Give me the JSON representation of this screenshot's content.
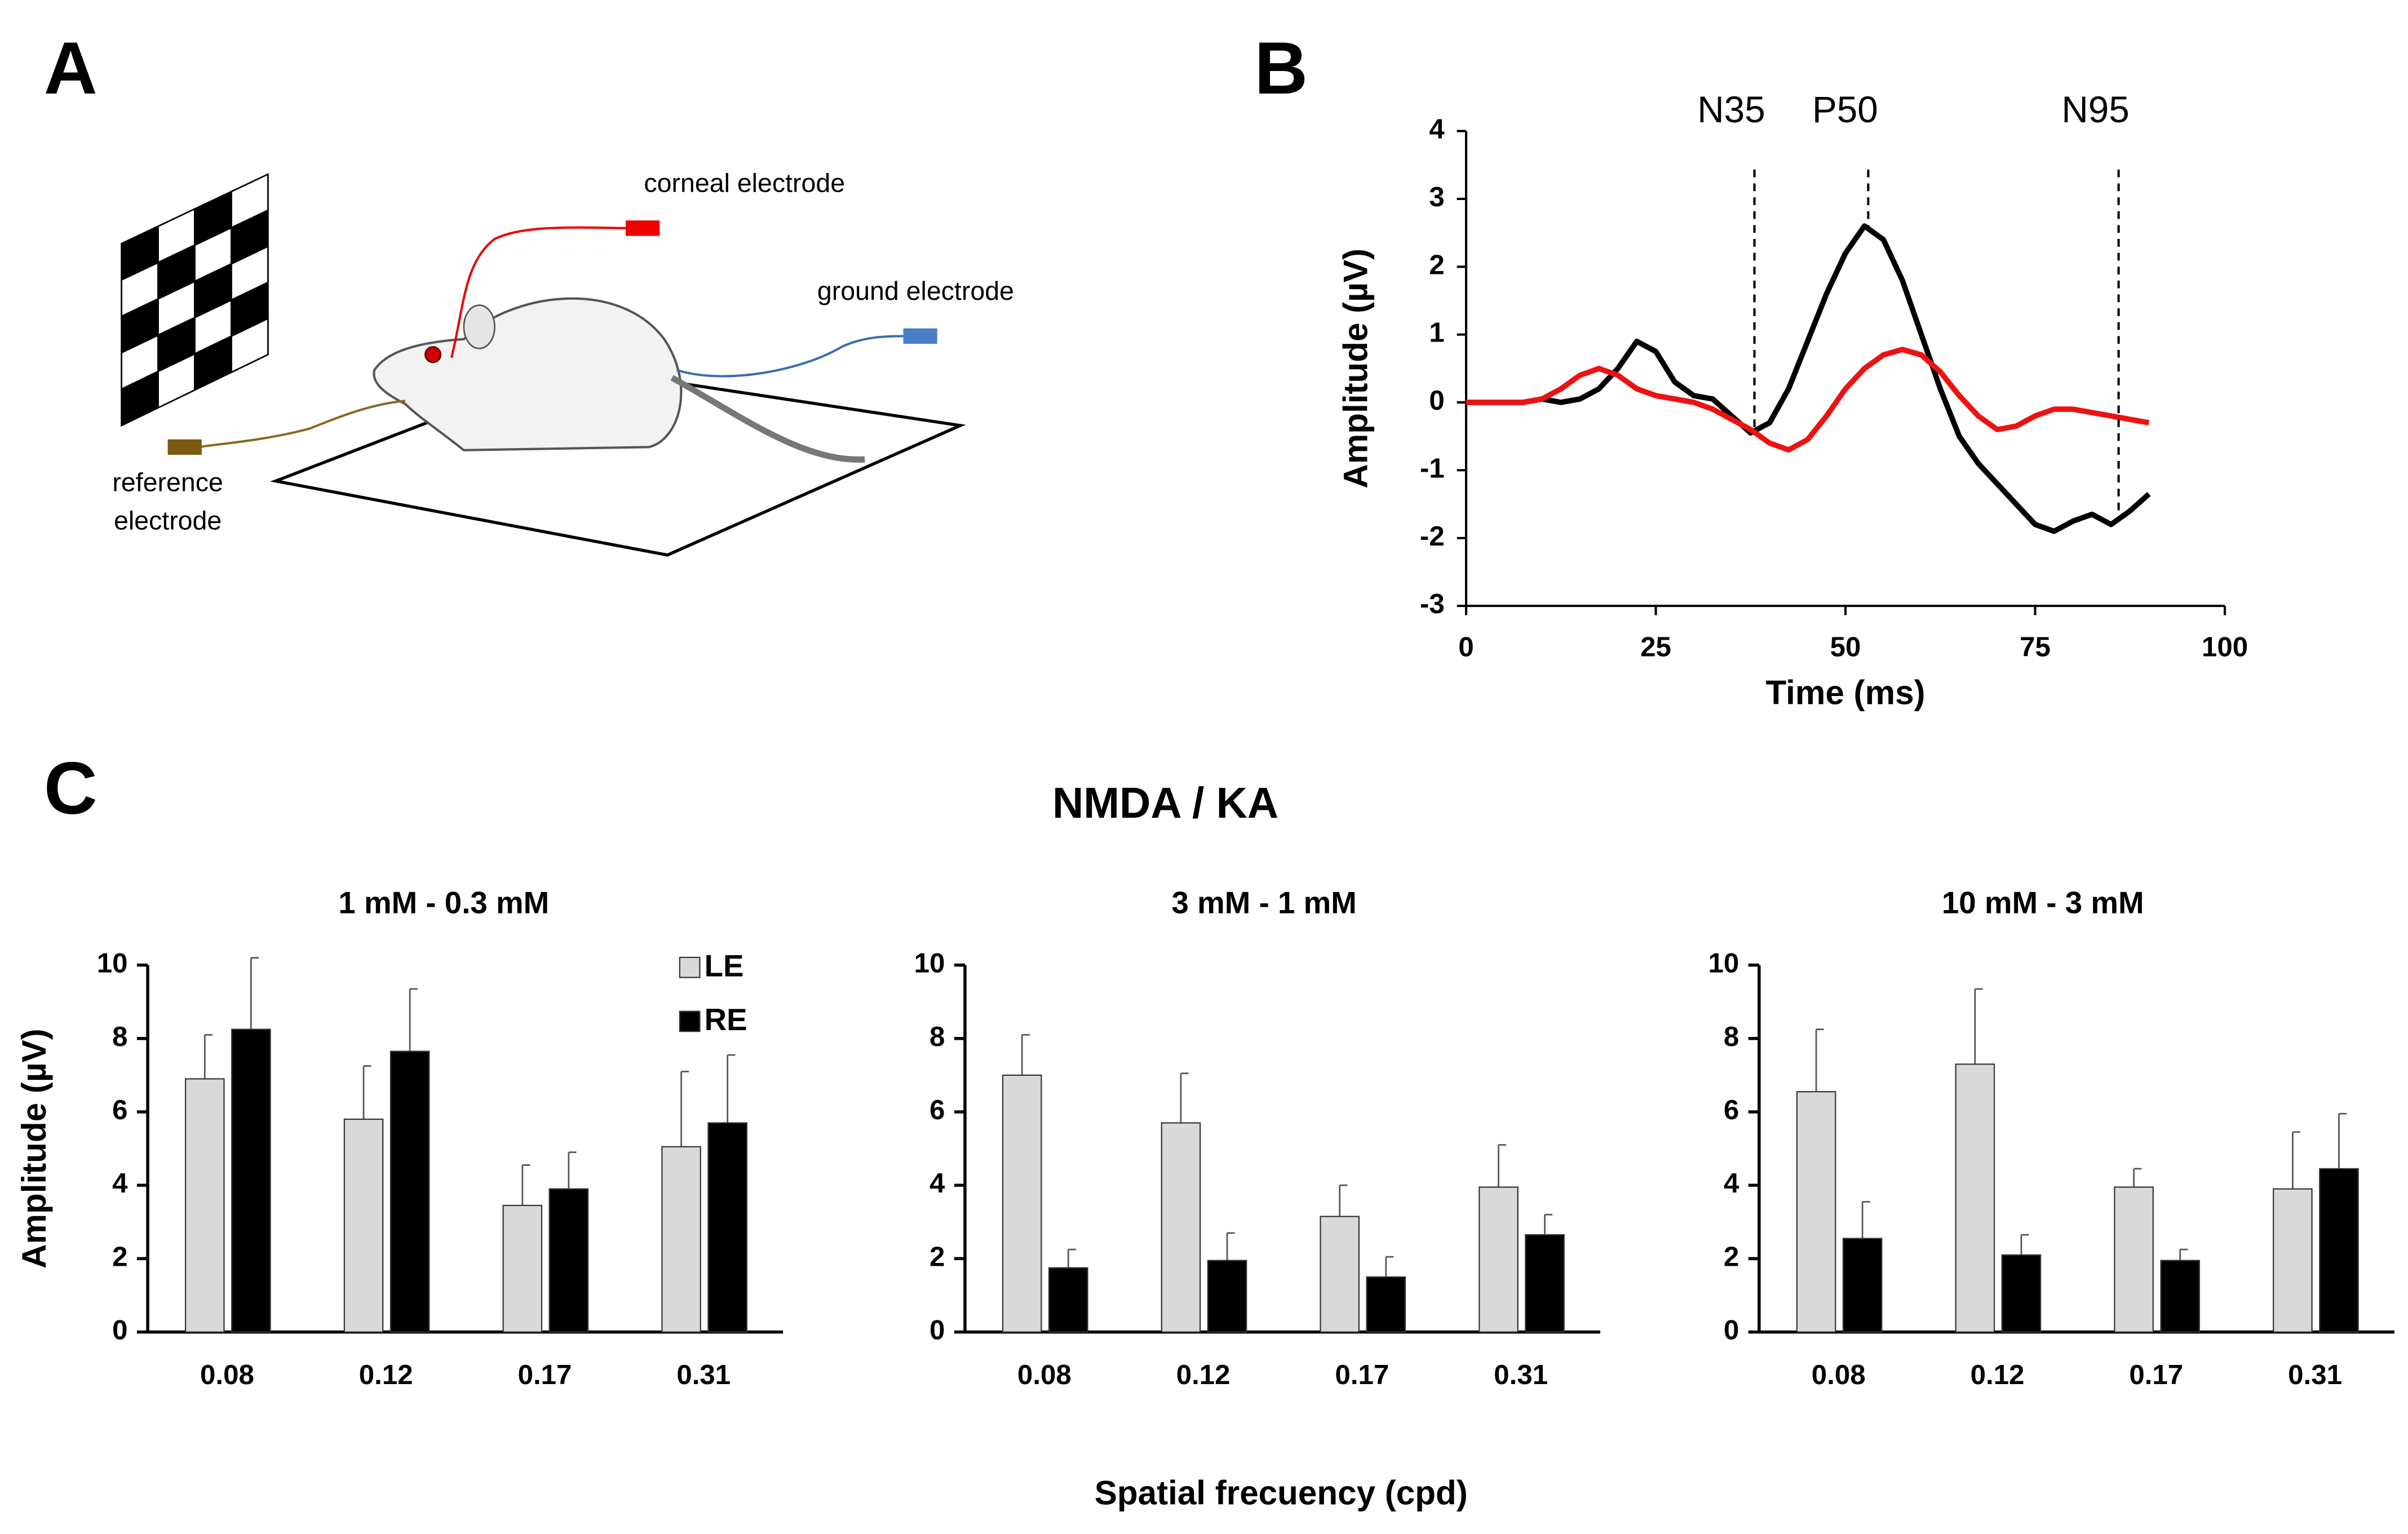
{
  "panel_labels": [
    "A",
    "B",
    "C"
  ],
  "figure_title": "NMDA / KA",
  "shared_xlabel": "Spatial frecuency (cpd)",
  "diagram": {
    "corneal": "corneal electrode",
    "ground": "ground electrode",
    "reference": [
      "reference",
      "electrode"
    ]
  },
  "chart_data": [
    {
      "type": "line",
      "xlabel": "Time (ms)",
      "ylabel": "Amplitude (µV)",
      "x": [
        0,
        2.5,
        5,
        7.5,
        10,
        12.5,
        15,
        17.5,
        20,
        22.5,
        25,
        27.5,
        30,
        32.5,
        35,
        37.5,
        40,
        42.5,
        45,
        47.5,
        50,
        52.5,
        55,
        57.5,
        60,
        62.5,
        65,
        67.5,
        70,
        72.5,
        75,
        77.5,
        80,
        82.5,
        85,
        87.5,
        90
      ],
      "series": [
        {
          "color": "#000000",
          "values": [
            0,
            0,
            0,
            0,
            0.05,
            0,
            0.05,
            0.2,
            0.5,
            0.9,
            0.75,
            0.3,
            0.1,
            0.05,
            -0.2,
            -0.45,
            -0.3,
            0.2,
            0.9,
            1.6,
            2.2,
            2.6,
            2.4,
            1.8,
            1.0,
            0.2,
            -0.5,
            -0.9,
            -1.2,
            -1.5,
            -1.8,
            -1.9,
            -1.75,
            -1.65,
            -1.8,
            -1.6,
            -1.35
          ]
        },
        {
          "color": "#ee1111",
          "values": [
            0,
            0,
            0,
            0,
            0.05,
            0.2,
            0.4,
            0.5,
            0.4,
            0.2,
            0.1,
            0.05,
            0,
            -0.1,
            -0.25,
            -0.4,
            -0.6,
            -0.7,
            -0.55,
            -0.2,
            0.2,
            0.5,
            0.7,
            0.78,
            0.7,
            0.45,
            0.1,
            -0.2,
            -0.4,
            -0.35,
            -0.2,
            -0.1,
            -0.1,
            -0.15,
            -0.2,
            -0.25,
            -0.3
          ]
        }
      ],
      "annotations": [
        {
          "label": "N35",
          "x": 38
        },
        {
          "label": "P50",
          "x": 53
        },
        {
          "label": "N95",
          "x": 86
        }
      ],
      "xlim": [
        0,
        100
      ],
      "xticks": [
        0,
        25,
        50,
        75,
        100
      ],
      "ylim": [
        -3,
        4
      ],
      "yticks": [
        -3,
        -2,
        -1,
        0,
        1,
        2,
        3,
        4
      ]
    },
    {
      "type": "bar",
      "title": "1 mM - 0.3 mM",
      "ylabel": "Amplitude (µV)",
      "legend": true,
      "categories": [
        "0.08",
        "0.12",
        "0.17",
        "0.31"
      ],
      "series": [
        {
          "name": "LE",
          "color": "#d9d9d9",
          "values": [
            6.9,
            5.8,
            3.45,
            5.05
          ],
          "errors": [
            1.2,
            1.45,
            1.1,
            2.05
          ]
        },
        {
          "name": "RE",
          "color": "#000000",
          "values": [
            8.25,
            7.65,
            3.9,
            5.7
          ],
          "errors": [
            1.95,
            1.7,
            1.0,
            1.85
          ]
        }
      ],
      "ylim": [
        0,
        10
      ],
      "yticks": [
        0,
        2,
        4,
        6,
        8,
        10
      ]
    },
    {
      "type": "bar",
      "title": "3 mM - 1 mM",
      "legend": false,
      "categories": [
        "0.08",
        "0.12",
        "0.17",
        "0.31"
      ],
      "series": [
        {
          "color": "#d9d9d9",
          "values": [
            7.0,
            5.7,
            3.15,
            3.95
          ],
          "errors": [
            1.1,
            1.35,
            0.85,
            1.15
          ]
        },
        {
          "color": "#000000",
          "values": [
            1.75,
            1.95,
            1.5,
            2.65
          ],
          "errors": [
            0.5,
            0.75,
            0.55,
            0.55
          ]
        }
      ],
      "ylim": [
        0,
        10
      ],
      "yticks": [
        0,
        2,
        4,
        6,
        8,
        10
      ]
    },
    {
      "type": "bar",
      "title": "10 mM - 3 mM",
      "legend": false,
      "categories": [
        "0.08",
        "0.12",
        "0.17",
        "0.31"
      ],
      "series": [
        {
          "color": "#d9d9d9",
          "values": [
            6.55,
            7.3,
            3.95,
            3.9
          ],
          "errors": [
            1.7,
            2.05,
            0.5,
            1.55
          ]
        },
        {
          "color": "#000000",
          "values": [
            2.55,
            2.1,
            1.95,
            4.45
          ],
          "errors": [
            1.0,
            0.55,
            0.3,
            1.5
          ]
        }
      ],
      "ylim": [
        0,
        10
      ],
      "yticks": [
        0,
        2,
        4,
        6,
        8,
        10
      ]
    }
  ]
}
